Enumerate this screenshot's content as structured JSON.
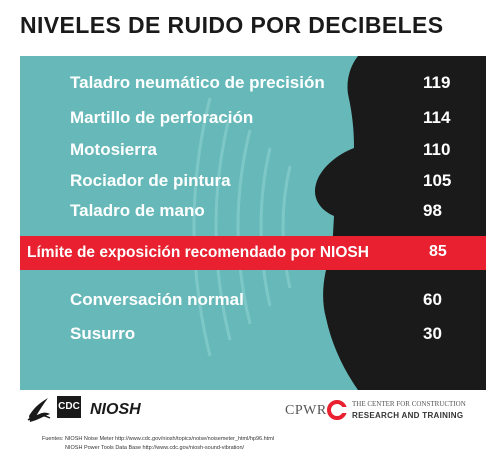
{
  "title": "NIVELES DE RUIDO POR DECIBELES",
  "rows": [
    {
      "label": "Taladro neumático de precisión",
      "value": "119"
    },
    {
      "label": "Martillo de perforación",
      "value": "114"
    },
    {
      "label": "Motosierra",
      "value": "110"
    },
    {
      "label": "Rociador de pintura",
      "value": "105"
    },
    {
      "label": "Taladro de mano",
      "value": "98"
    },
    {
      "label": "Conversación normal",
      "value": "60"
    },
    {
      "label": "Susurro",
      "value": "30"
    }
  ],
  "niosh_limit": {
    "label": "Límite de exposición recomendado por NIOSH",
    "value": "85"
  },
  "logos": {
    "cdc": "CDC",
    "niosh": "NIOSH",
    "cpwr": "CPWR",
    "cpwr_line1": "THE CENTER FOR CONSTRUCTION",
    "cpwr_line2": "RESEARCH AND TRAINING"
  },
  "sources": {
    "line1": "Fuentes: NIOSH Noise Meter http://www.cdc.gov/niosh/topics/noise/noisemeter_html/hp96.html",
    "line2": "NIOSH Power Tools Data Base http://www.cdc.gov/niosh-sound-vibration/"
  },
  "colors": {
    "panel": "#67b9b9",
    "silhouette": "#1a1a1a",
    "alert": "#e8202f",
    "text": "#ffffff"
  }
}
